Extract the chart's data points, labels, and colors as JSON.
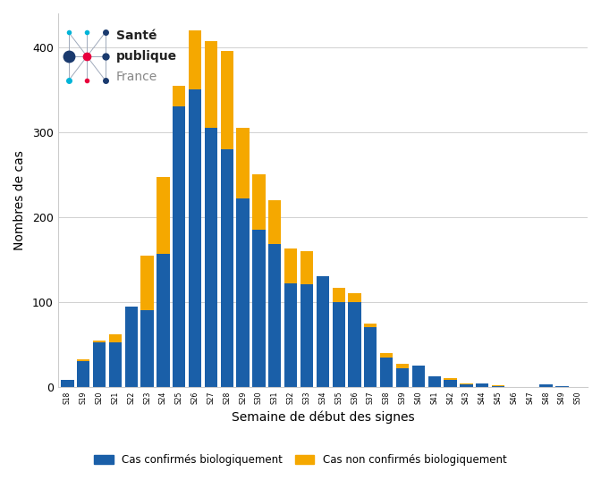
{
  "weeks": [
    "S18",
    "S19",
    "S20",
    "S21",
    "S22",
    "S23",
    "S24",
    "S25",
    "S26",
    "S27",
    "S28",
    "S29",
    "S30",
    "S31",
    "S32",
    "S33",
    "S34",
    "S35",
    "S36",
    "S37",
    "S38",
    "S39",
    "S40",
    "S41",
    "S42",
    "S43",
    "S44",
    "S45",
    "S46",
    "S47",
    "S48",
    "S49",
    "S50"
  ],
  "confirmed": [
    8,
    30,
    52,
    52,
    95,
    90,
    157,
    330,
    350,
    305,
    280,
    222,
    185,
    168,
    122,
    121,
    130,
    100,
    100,
    70,
    35,
    22,
    25,
    13,
    8,
    3,
    4,
    1,
    0,
    0,
    3,
    1,
    0
  ],
  "non_confirmed": [
    0,
    2,
    3,
    10,
    0,
    65,
    90,
    25,
    70,
    102,
    116,
    83,
    65,
    52,
    41,
    39,
    0,
    17,
    10,
    5,
    5,
    5,
    0,
    0,
    2,
    1,
    0,
    1,
    0,
    0,
    0,
    0,
    0
  ],
  "color_confirmed": "#1a5fa8",
  "color_non_confirmed": "#f5a800",
  "xlabel": "Semaine de début des signes",
  "ylabel": "Nombres de cas",
  "ylim": [
    0,
    440
  ],
  "yticks": [
    0,
    100,
    200,
    300,
    400
  ],
  "legend_confirmed": "Cas confirmés biologiquement",
  "legend_non_confirmed": "Cas non confirmés biologiquement",
  "background_color": "#ffffff",
  "grid_color": "#d0d0d0",
  "logo_text1": "Santé",
  "logo_text2": "publique",
  "logo_text3": "France",
  "logo_dot_colors": [
    "#00b4d8",
    "#1a3a6e",
    "#e8003d",
    "#00b4d8",
    "#1a3a6e",
    "#e8003d"
  ],
  "logo_node_large_color": "#1a3a6e",
  "logo_node_center_color": "#e8003d"
}
